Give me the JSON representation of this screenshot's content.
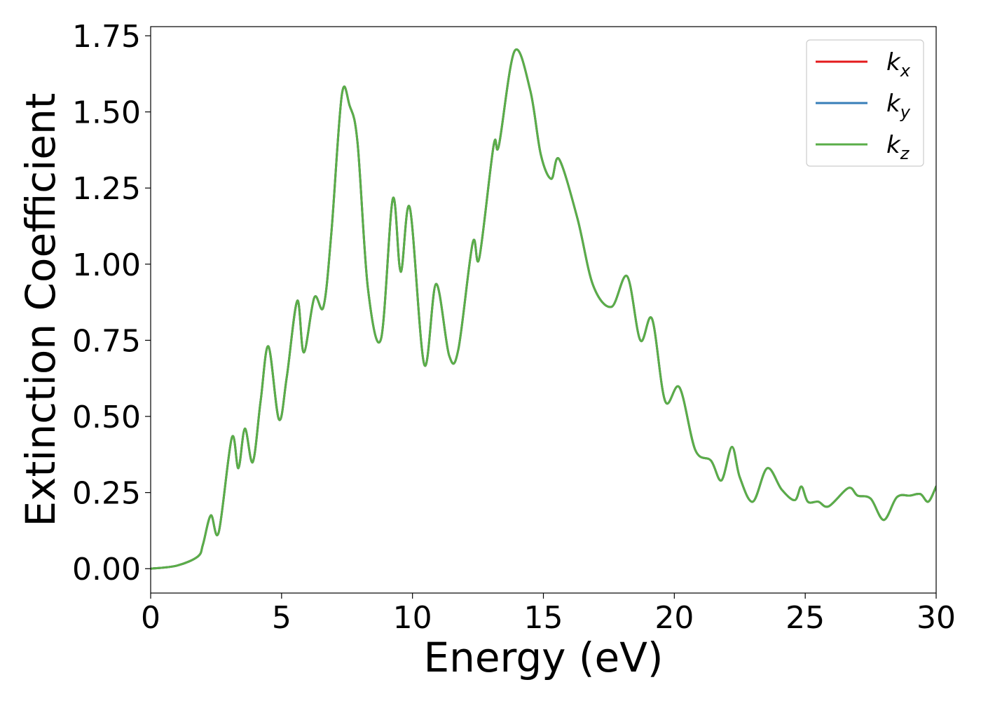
{
  "chart_data": {
    "type": "line",
    "title": "",
    "xlabel": "Energy (eV)",
    "ylabel": "Extinction Coefficient",
    "xlim": [
      0,
      30
    ],
    "ylim": [
      -0.08,
      1.78
    ],
    "xticks": [
      0,
      5,
      10,
      15,
      20,
      25,
      30
    ],
    "xtick_labels": [
      "0",
      "5",
      "10",
      "15",
      "20",
      "25",
      "30"
    ],
    "yticks": [
      0.0,
      0.25,
      0.5,
      0.75,
      1.0,
      1.25,
      1.5,
      1.75
    ],
    "ytick_labels": [
      "0.00",
      "0.25",
      "0.50",
      "0.75",
      "1.00",
      "1.25",
      "1.50",
      "1.75"
    ],
    "grid": false,
    "legend_position": "top-right",
    "x": [
      0,
      1.0,
      1.8,
      2.0,
      2.3,
      2.6,
      3.1,
      3.35,
      3.6,
      3.9,
      4.2,
      4.5,
      4.9,
      5.2,
      5.6,
      5.85,
      6.25,
      6.6,
      6.9,
      7.3,
      7.6,
      7.9,
      8.3,
      8.8,
      9.25,
      9.55,
      9.9,
      10.45,
      10.9,
      11.4,
      11.75,
      12.3,
      12.55,
      13.1,
      13.3,
      13.9,
      14.5,
      14.9,
      15.3,
      15.6,
      16.3,
      16.9,
      17.6,
      18.2,
      18.7,
      19.15,
      19.65,
      20.2,
      20.8,
      21.4,
      21.8,
      22.2,
      22.5,
      23.0,
      23.55,
      24.1,
      24.6,
      24.85,
      25.1,
      25.5,
      25.9,
      26.65,
      27.0,
      27.5,
      28.0,
      28.5,
      29.0,
      29.4,
      29.7,
      30.0
    ],
    "series": [
      {
        "name": "k_x",
        "label_main": "k",
        "label_sub": "x",
        "color": "#e41a1c",
        "values": [
          0.0,
          0.01,
          0.04,
          0.08,
          0.175,
          0.12,
          0.43,
          0.33,
          0.46,
          0.35,
          0.55,
          0.73,
          0.49,
          0.63,
          0.88,
          0.71,
          0.89,
          0.86,
          1.1,
          1.555,
          1.52,
          1.4,
          0.92,
          0.755,
          1.215,
          0.975,
          1.185,
          0.67,
          0.935,
          0.7,
          0.72,
          1.07,
          1.02,
          1.39,
          1.39,
          1.7,
          1.57,
          1.36,
          1.28,
          1.345,
          1.15,
          0.93,
          0.86,
          0.96,
          0.75,
          0.82,
          0.55,
          0.595,
          0.39,
          0.355,
          0.29,
          0.4,
          0.3,
          0.22,
          0.33,
          0.26,
          0.225,
          0.27,
          0.22,
          0.22,
          0.205,
          0.265,
          0.24,
          0.23,
          0.16,
          0.235,
          0.24,
          0.245,
          0.22,
          0.27
        ]
      },
      {
        "name": "k_y",
        "label_main": "k",
        "label_sub": "y",
        "color": "#377eb8",
        "values": [
          0.0,
          0.01,
          0.04,
          0.08,
          0.175,
          0.12,
          0.43,
          0.33,
          0.46,
          0.35,
          0.55,
          0.73,
          0.49,
          0.63,
          0.88,
          0.71,
          0.89,
          0.86,
          1.1,
          1.555,
          1.52,
          1.4,
          0.92,
          0.755,
          1.215,
          0.975,
          1.185,
          0.67,
          0.935,
          0.7,
          0.72,
          1.07,
          1.02,
          1.39,
          1.39,
          1.7,
          1.57,
          1.36,
          1.28,
          1.345,
          1.15,
          0.93,
          0.86,
          0.96,
          0.75,
          0.82,
          0.55,
          0.595,
          0.39,
          0.355,
          0.29,
          0.4,
          0.3,
          0.22,
          0.33,
          0.26,
          0.225,
          0.27,
          0.22,
          0.22,
          0.205,
          0.265,
          0.24,
          0.23,
          0.16,
          0.235,
          0.24,
          0.245,
          0.22,
          0.27
        ]
      },
      {
        "name": "k_z",
        "label_main": "k",
        "label_sub": "z",
        "color": "#5aae48",
        "values": [
          0.0,
          0.01,
          0.04,
          0.08,
          0.175,
          0.12,
          0.43,
          0.33,
          0.46,
          0.35,
          0.55,
          0.73,
          0.49,
          0.63,
          0.88,
          0.71,
          0.89,
          0.86,
          1.1,
          1.555,
          1.52,
          1.4,
          0.92,
          0.755,
          1.215,
          0.975,
          1.185,
          0.67,
          0.935,
          0.7,
          0.72,
          1.07,
          1.02,
          1.39,
          1.39,
          1.7,
          1.57,
          1.36,
          1.28,
          1.345,
          1.15,
          0.93,
          0.86,
          0.96,
          0.75,
          0.82,
          0.55,
          0.595,
          0.39,
          0.355,
          0.29,
          0.4,
          0.3,
          0.22,
          0.33,
          0.26,
          0.225,
          0.27,
          0.22,
          0.22,
          0.205,
          0.265,
          0.24,
          0.23,
          0.16,
          0.235,
          0.24,
          0.245,
          0.22,
          0.27
        ]
      }
    ]
  }
}
